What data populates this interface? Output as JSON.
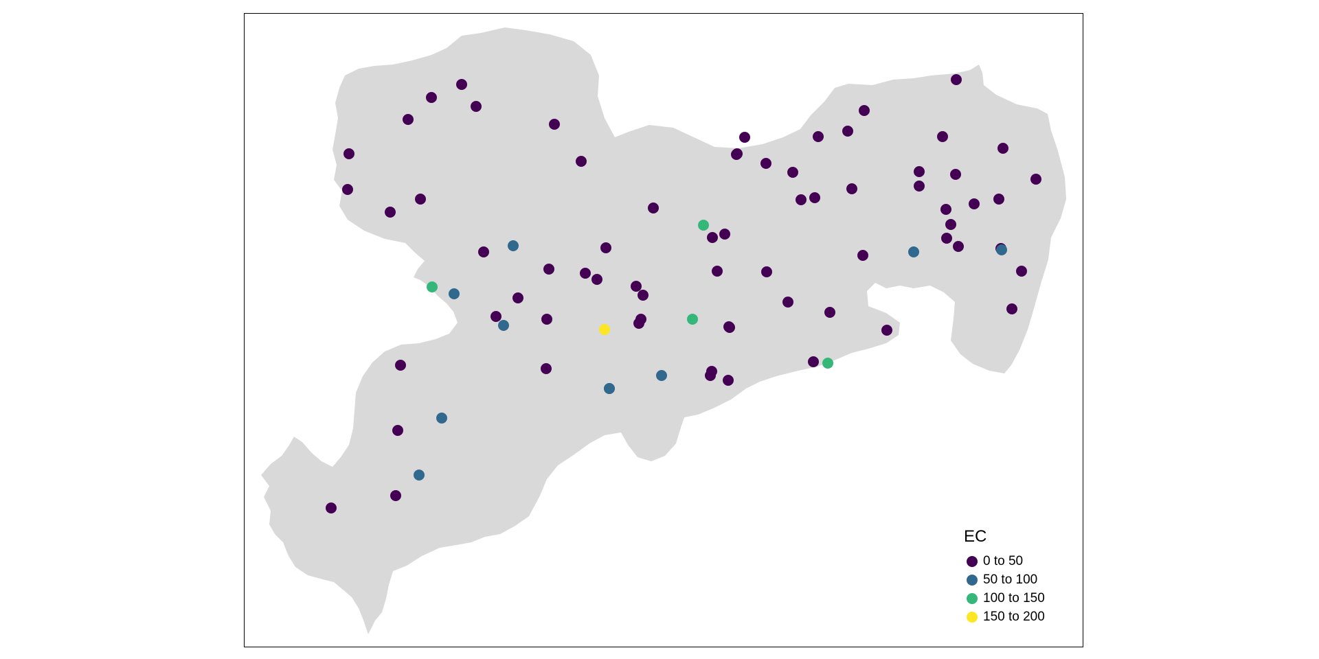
{
  "map": {
    "land_fill": "#d9d9d9",
    "frame_color": "#000000"
  },
  "legend": {
    "title": "EC",
    "classes": [
      {
        "label": "0 to 50",
        "color": "#440154"
      },
      {
        "label": "50 to 100",
        "color": "#31688e"
      },
      {
        "label": "100 to 150",
        "color": "#35b779"
      },
      {
        "label": "150 to 200",
        "color": "#fde725"
      }
    ]
  },
  "points": [
    {
      "c": 0
    },
    {
      "c": 0
    },
    {
      "c": 0
    },
    {
      "c": 0
    },
    {
      "c": 0
    },
    {
      "c": 0
    },
    {
      "c": 0
    },
    {
      "c": 0
    },
    {
      "c": 0
    },
    {
      "c": 0
    },
    {
      "c": 0
    },
    {
      "c": 0
    },
    {
      "c": 0
    },
    {
      "c": 0
    },
    {
      "c": 0
    },
    {
      "c": 0
    },
    {
      "c": 0
    },
    {
      "c": 0
    },
    {
      "c": 0
    },
    {
      "c": 0
    },
    {
      "c": 0
    },
    {
      "c": 0
    },
    {
      "c": 0
    },
    {
      "c": 0
    },
    {
      "c": 0
    },
    {
      "c": 0
    },
    {
      "c": 0
    },
    {
      "c": 0
    },
    {
      "c": 0
    },
    {
      "c": 0
    },
    {
      "c": 0
    },
    {
      "c": 0
    },
    {
      "c": 0
    },
    {
      "c": 0
    },
    {
      "c": 0
    },
    {
      "c": 0
    },
    {
      "c": 0
    },
    {
      "c": 0
    },
    {
      "c": 0
    },
    {
      "c": 0
    },
    {
      "c": 0
    },
    {
      "c": 0
    },
    {
      "c": 0
    },
    {
      "c": 0
    },
    {
      "c": 0
    },
    {
      "c": 0
    },
    {
      "c": 0
    },
    {
      "c": 0
    },
    {
      "c": 0
    },
    {
      "c": 0
    },
    {
      "c": 0
    },
    {
      "c": 0
    },
    {
      "c": 0
    },
    {
      "c": 0
    },
    {
      "c": 0
    },
    {
      "c": 0
    },
    {
      "c": 0
    },
    {
      "c": 0
    },
    {
      "c": 0
    },
    {
      "c": 0
    },
    {
      "c": 0
    },
    {
      "c": 0
    },
    {
      "c": 0
    },
    {
      "c": 0
    },
    {
      "c": 0
    },
    {
      "c": 0
    },
    {
      "c": 0
    },
    {
      "c": 0
    },
    {
      "c": 0
    },
    {
      "c": 1
    },
    {
      "c": 1
    },
    {
      "c": 1
    },
    {
      "c": 1
    },
    {
      "c": 1
    },
    {
      "c": 1
    },
    {
      "c": 1
    },
    {
      "c": 1
    },
    {
      "c": 1
    },
    {
      "c": 1
    },
    {
      "c": 2
    },
    {
      "c": 2
    },
    {
      "c": 2
    },
    {
      "c": 2
    },
    {
      "c": 3
    }
  ]
}
